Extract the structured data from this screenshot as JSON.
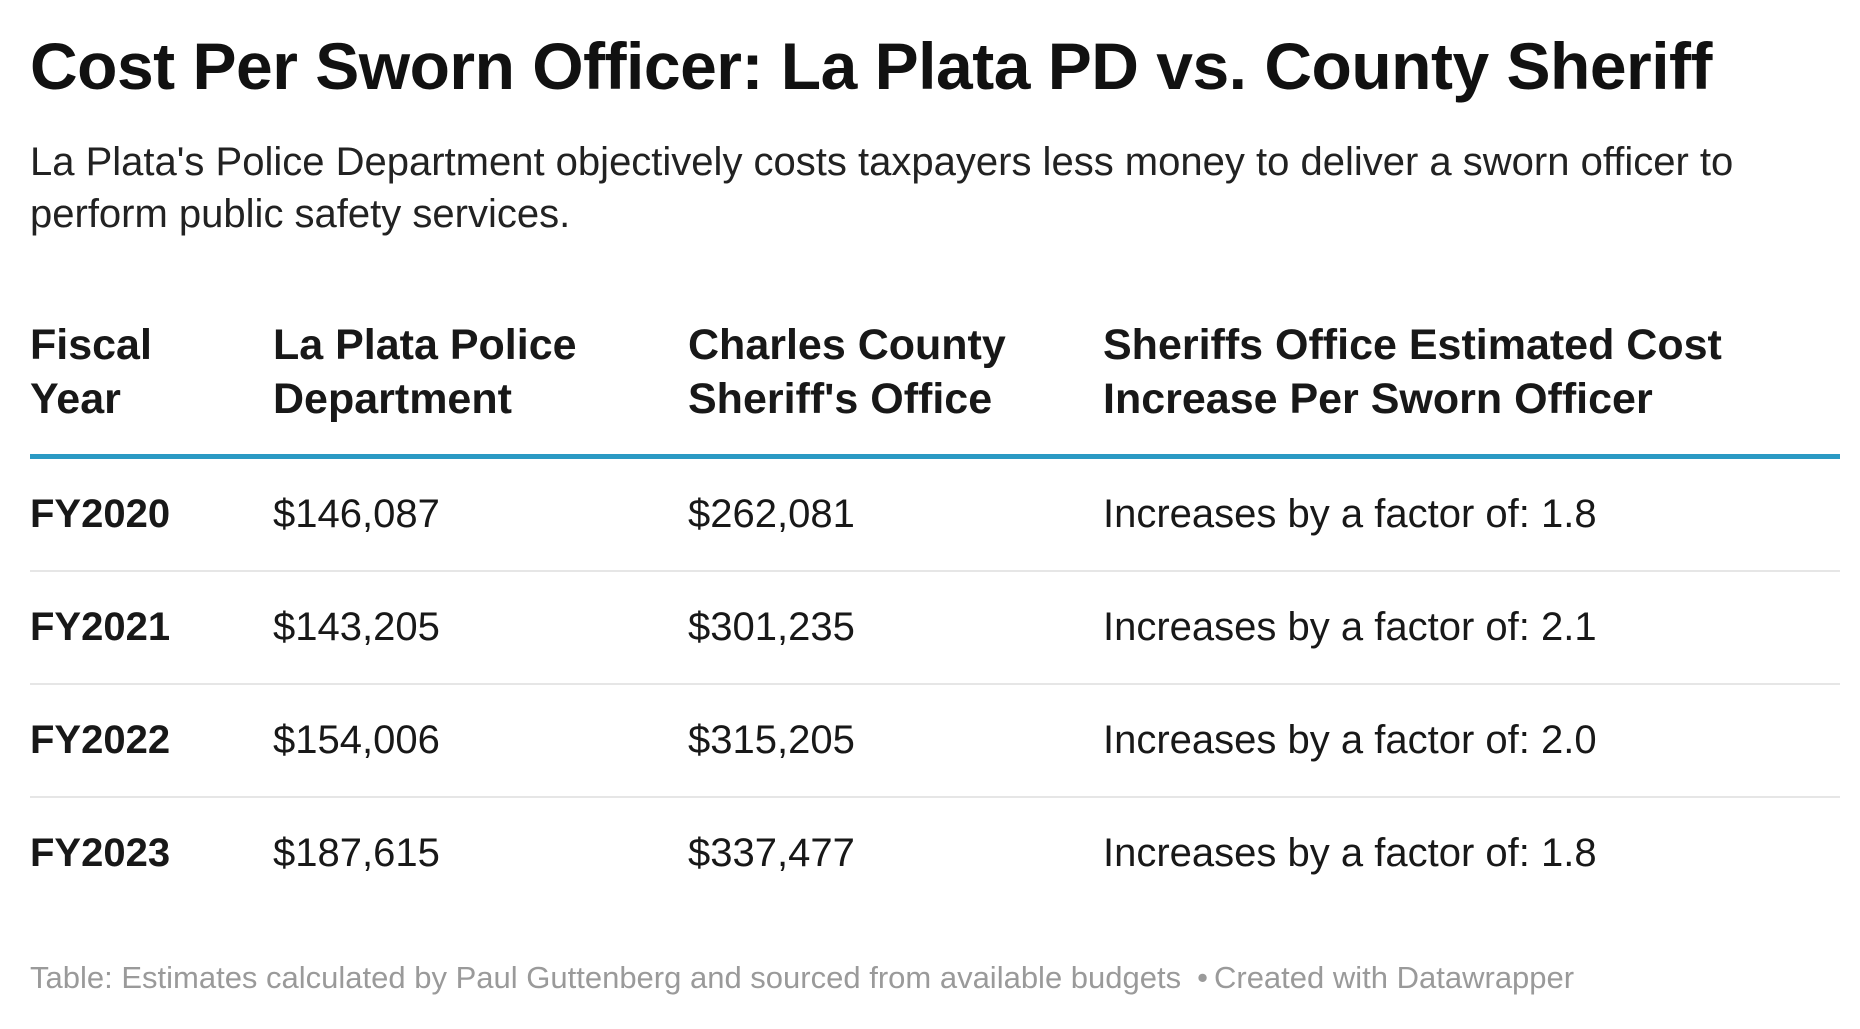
{
  "title": "Cost Per Sworn Officer: La Plata PD vs. County Sheriff",
  "subtitle": "La Plata's Police Department objectively costs taxpayers less money to deliver a sworn officer to perform public safety services.",
  "colors": {
    "header_rule": "#2b9ac4",
    "row_divider": "#e6e6e6",
    "footer_text": "#9a9a9a"
  },
  "table": {
    "headers": [
      [
        "Fiscal",
        "Year"
      ],
      [
        "La Plata Police",
        "Department"
      ],
      [
        "Charles County",
        "Sheriff's Office"
      ],
      [
        "Sheriffs Office Estimated Cost",
        "Increase Per Sworn Officer"
      ]
    ],
    "rows": [
      [
        "FY2020",
        "$146,087",
        "$262,081",
        "Increases by a factor of: 1.8"
      ],
      [
        "FY2021",
        "$143,205",
        "$301,235",
        "Increases by a factor of: 2.1"
      ],
      [
        "FY2022",
        "$154,006",
        "$315,205",
        "Increases by a factor of: 2.0"
      ],
      [
        "FY2023",
        "$187,615",
        "$337,477",
        "Increases by a factor of: 1.8"
      ]
    ]
  },
  "footer": {
    "source": "Table: Estimates calculated by Paul Guttenberg and sourced from available budgets",
    "separator": "•",
    "credit": "Created with Datawrapper"
  },
  "chart_data": {
    "type": "table",
    "title": "Cost Per Sworn Officer: La Plata PD vs. County Sheriff",
    "subtitle": "La Plata's Police Department objectively costs taxpayers less money to deliver a sworn officer to perform public safety services.",
    "columns": [
      "Fiscal Year",
      "La Plata Police Department",
      "Charles County Sheriff's Office",
      "Sheriffs Office Estimated Cost Increase Per Sworn Officer"
    ],
    "rows": [
      [
        "FY2020",
        "$146,087",
        "$262,081",
        "Increases by a factor of: 1.8"
      ],
      [
        "FY2021",
        "$143,205",
        "$301,235",
        "Increases by a factor of: 2.1"
      ],
      [
        "FY2022",
        "$154,006",
        "$315,205",
        "Increases by a factor of: 2.0"
      ],
      [
        "FY2023",
        "$187,615",
        "$337,477",
        "Increases by a factor of: 1.8"
      ]
    ],
    "values": {
      "categories": [
        "FY2020",
        "FY2021",
        "FY2022",
        "FY2023"
      ],
      "series": [
        {
          "name": "La Plata Police Department",
          "values": [
            146087,
            143205,
            154006,
            187615
          ]
        },
        {
          "name": "Charles County Sheriff's Office",
          "values": [
            262081,
            301235,
            315205,
            337477
          ]
        },
        {
          "name": "Sheriffs Office Estimated Cost Increase Per Sworn Officer",
          "values": [
            1.8,
            2.1,
            2.0,
            1.8
          ]
        }
      ]
    }
  }
}
